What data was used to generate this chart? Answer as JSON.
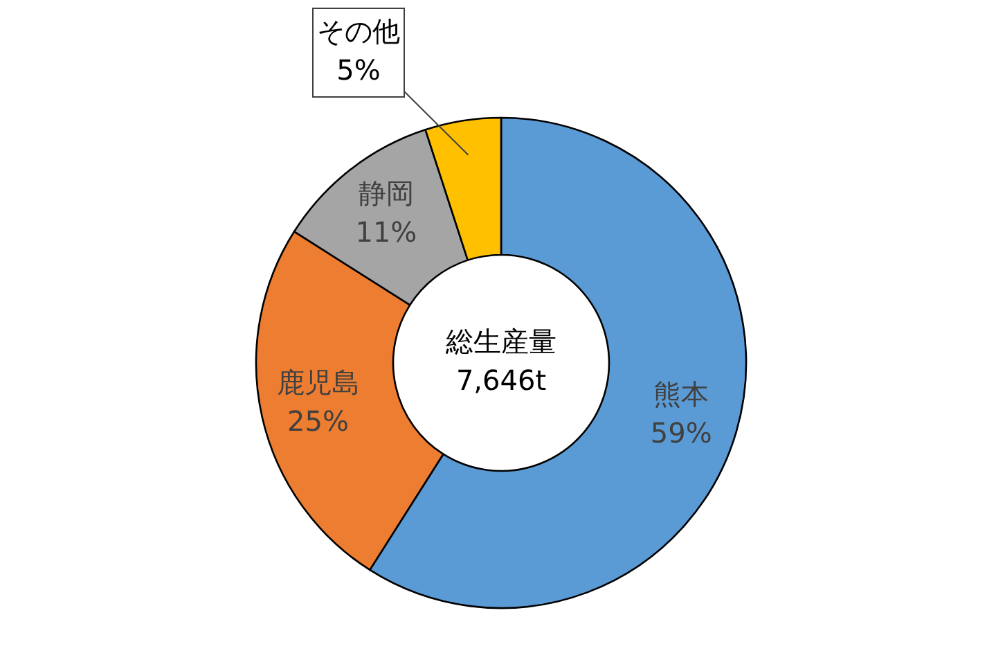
{
  "chart_data": {
    "type": "donut",
    "categories": [
      "熊本",
      "鹿児島",
      "静岡",
      "その他"
    ],
    "values": [
      59,
      25,
      11,
      5
    ],
    "colors": [
      "#5b9bd5",
      "#ed7d31",
      "#a5a5a5",
      "#ffc000"
    ],
    "value_labels": [
      "59%",
      "25%",
      "11%",
      "5%"
    ],
    "annotations": [
      "総生産量",
      "7,646t"
    ]
  }
}
